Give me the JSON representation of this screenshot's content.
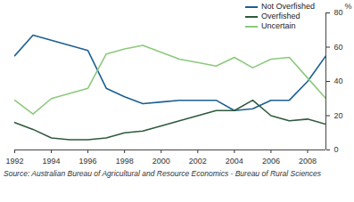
{
  "chart_data": {
    "type": "line",
    "x": [
      1992,
      1993,
      1994,
      1995,
      1996,
      1997,
      1998,
      1999,
      2000,
      2001,
      2002,
      2003,
      2004,
      2005,
      2006,
      2007,
      2008,
      2009
    ],
    "series": [
      {
        "name": "Not Overfished",
        "color": "#1c5f91",
        "values": [
          55,
          67,
          64,
          61,
          58,
          36,
          31,
          27,
          28,
          29,
          29,
          29,
          23,
          24,
          29,
          29,
          40,
          55
        ]
      },
      {
        "name": "Overfished",
        "color": "#2e5a3c",
        "values": [
          16,
          12,
          7,
          6,
          6,
          7,
          10,
          11,
          14,
          17,
          20,
          23,
          23,
          29,
          20,
          17,
          18,
          15
        ]
      },
      {
        "name": "Uncertain",
        "color": "#8cc97b",
        "values": [
          29,
          21,
          30,
          33,
          36,
          56,
          59,
          61,
          57,
          53,
          51,
          49,
          54,
          48,
          53,
          54,
          42,
          30
        ]
      }
    ],
    "xlim": [
      1992,
      2009
    ],
    "xticks": [
      1992,
      1994,
      1996,
      1998,
      2000,
      2002,
      2004,
      2006,
      2008
    ],
    "ylim": [
      0,
      80
    ],
    "yticks": [
      0,
      20,
      40,
      60,
      80
    ],
    "y_label": "%",
    "legend": "top-right",
    "grid": false,
    "caption": "Source: Australian Bureau of Agricultural and Resource Economics - Bureau of Rural Sciences"
  }
}
